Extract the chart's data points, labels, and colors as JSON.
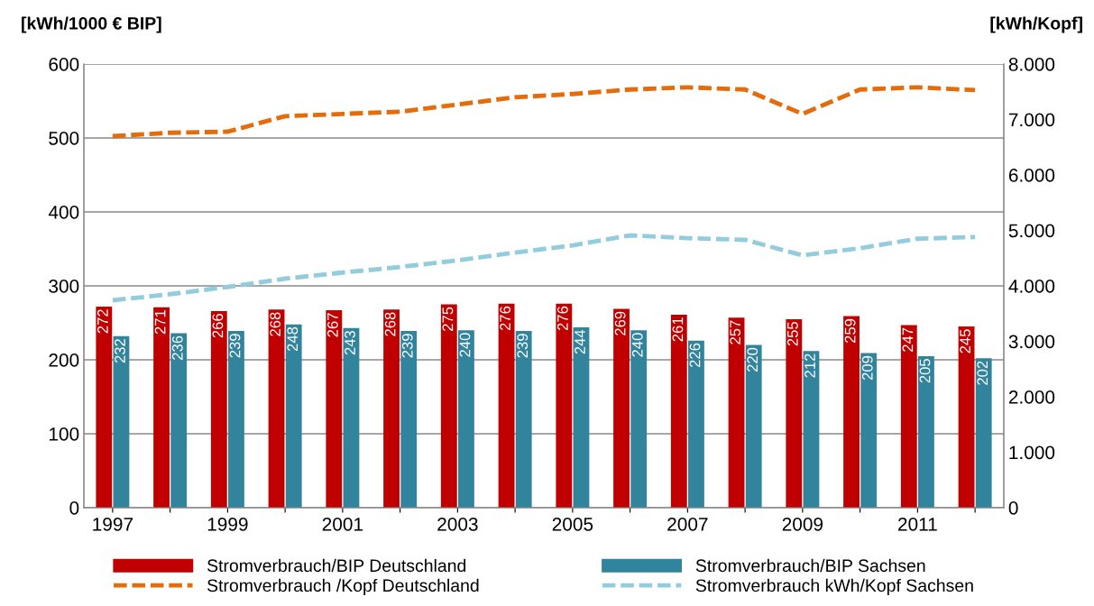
{
  "chart_data": {
    "type": "bar",
    "ylabel": "[kWh/1000 € BIP]",
    "y2label": "[kWh/Kopf]",
    "categories": [
      "1997",
      null,
      "1999",
      null,
      "2001",
      null,
      "2003",
      null,
      "2005",
      null,
      "2007",
      null,
      "2009",
      null,
      "2011",
      null
    ],
    "series": [
      {
        "name": "Stromverbrauch/BIP Deutschland",
        "color": "#c00000",
        "values": [
          272,
          271,
          266,
          268,
          267,
          268,
          275,
          276,
          276,
          269,
          261,
          257,
          255,
          259,
          247,
          245
        ],
        "value_labels": [
          "272",
          "271",
          "266",
          "268",
          "267",
          "268",
          "275",
          "276",
          "276",
          "269",
          "261",
          "257",
          "255",
          "259",
          "247",
          "245"
        ]
      },
      {
        "name": "Stromverbrauch/BIP Sachsen",
        "color": "#31849b",
        "values": [
          232,
          236,
          239,
          248,
          243,
          239,
          240,
          239,
          244,
          240,
          226,
          220,
          212,
          209,
          205,
          202
        ],
        "value_labels": [
          "232",
          "236",
          "239",
          "248",
          "243",
          "239",
          "240",
          "239",
          "244",
          "240",
          "226",
          "220",
          "212",
          "209",
          "205",
          "202"
        ]
      },
      {
        "name": "Stromverbrauch /Kopf Deutschland",
        "type": "line",
        "axis": "y2",
        "line_style": "dashed",
        "color": "#e46c0a",
        "values": [
          6700,
          6760,
          6780,
          7060,
          7100,
          7140,
          7270,
          7400,
          7460,
          7540,
          7580,
          7540,
          7100,
          7540,
          7580,
          7530
        ]
      },
      {
        "name": "Stromverbrauch kWh/Kopf Sachsen",
        "type": "line",
        "axis": "y2",
        "line_style": "dashed",
        "color": "#93cddd",
        "values": [
          3740,
          3850,
          3980,
          4130,
          4240,
          4340,
          4460,
          4600,
          4730,
          4910,
          4860,
          4830,
          4550,
          4680,
          4850,
          4880
        ]
      }
    ],
    "ylim": [
      0,
      600
    ],
    "yticks": [
      0,
      100,
      200,
      300,
      400,
      500,
      600
    ],
    "y2lim": [
      0,
      8000
    ],
    "y2ticks": [
      0,
      {
        "value": 1000,
        "label": "1.000"
      },
      {
        "value": 2000,
        "label": "2.000"
      },
      {
        "value": 3000,
        "label": "3.000"
      },
      {
        "value": 4000,
        "label": "4.000"
      },
      {
        "value": 5000,
        "label": "5.000"
      },
      {
        "value": 6000,
        "label": "6.000"
      },
      {
        "value": 7000,
        "label": "7.000"
      },
      {
        "value": 8000,
        "label": "8.000"
      }
    ],
    "grid": "y",
    "legend": "bottom"
  }
}
